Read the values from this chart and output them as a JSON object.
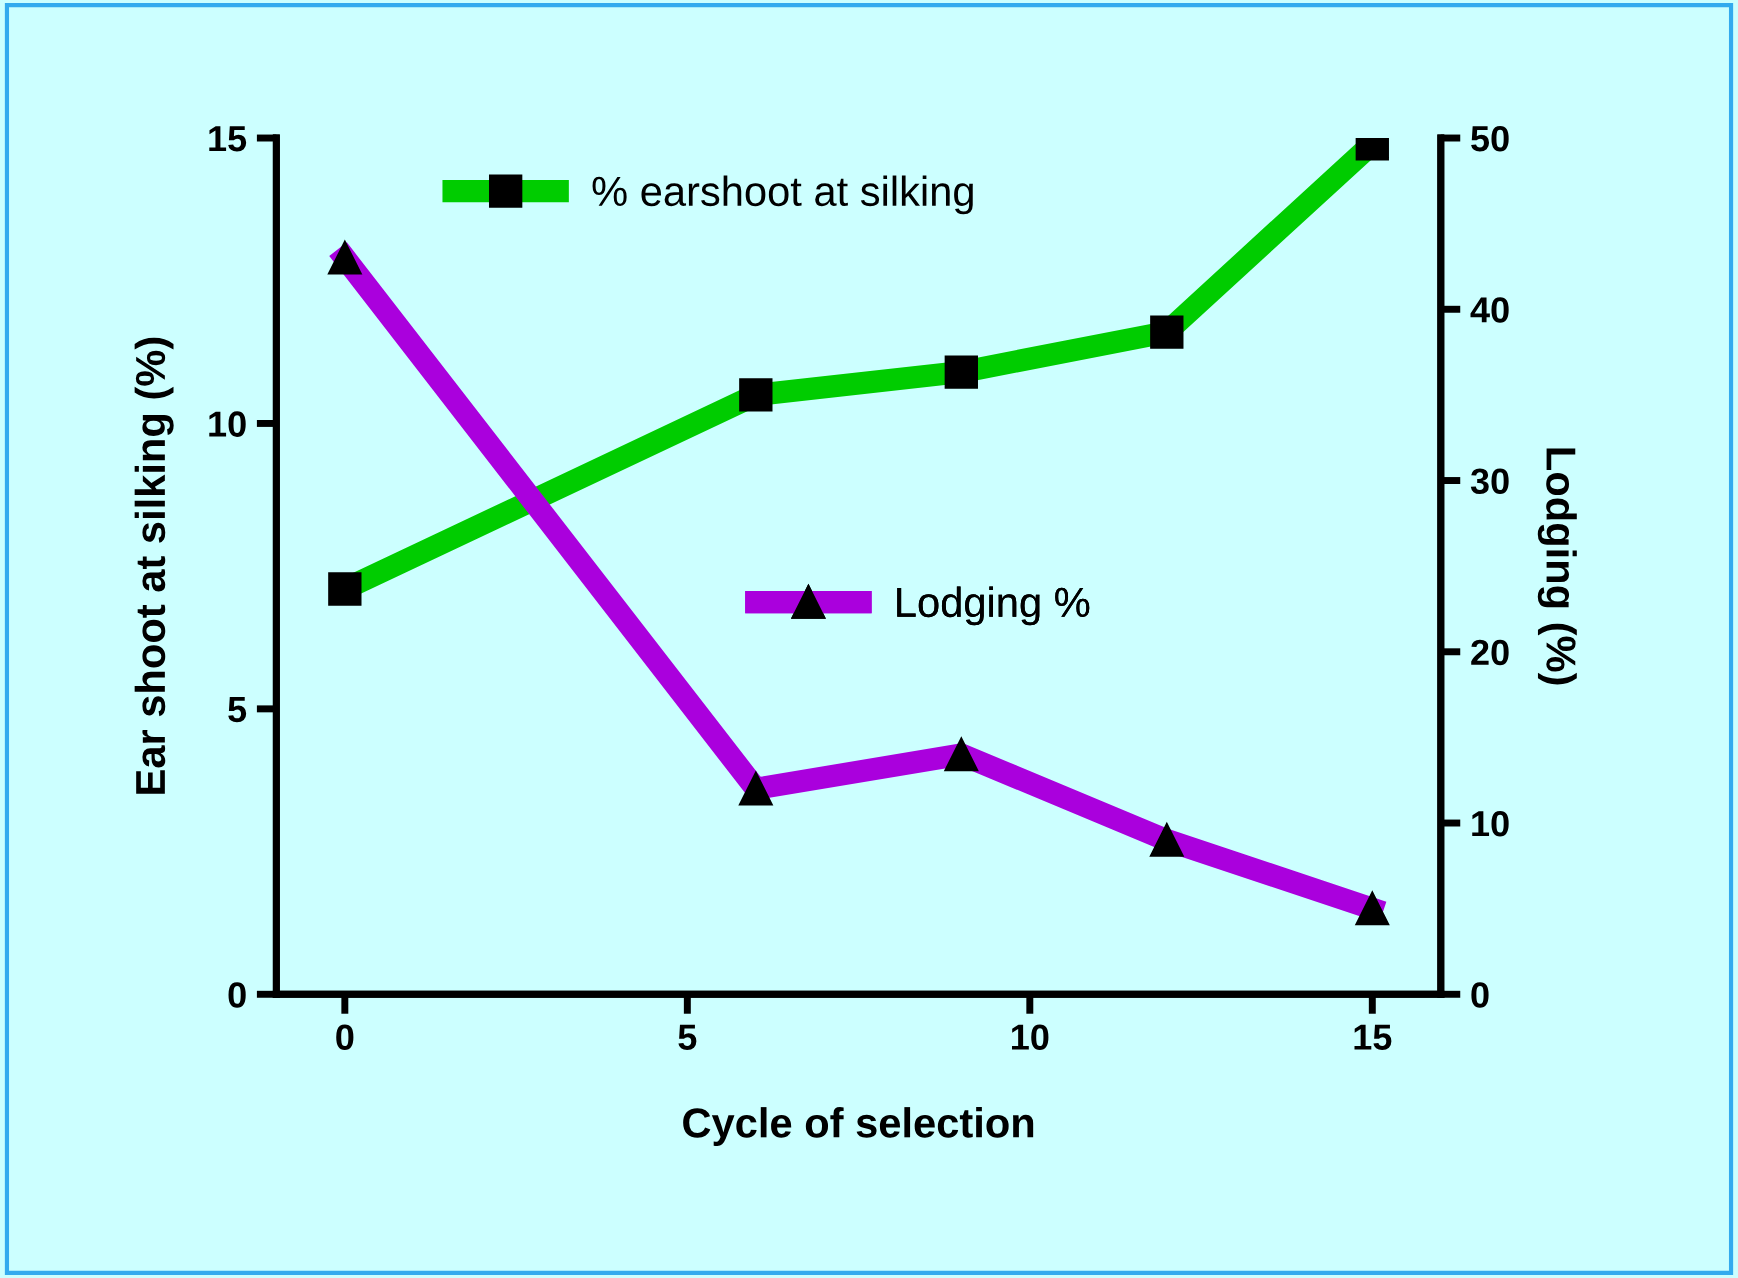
{
  "chart_data": {
    "type": "line",
    "xlabel": "Cycle of selection",
    "ylabel": "Ear shoot at silking (%)",
    "y2label": "Lodging (%)",
    "x": [
      0,
      6,
      9,
      12,
      15
    ],
    "series": [
      {
        "name": "% earshoot at silking",
        "color": "#00cc00",
        "values": [
          7.1,
          10.5,
          10.9,
          11.6,
          14.9
        ],
        "marker": "square"
      },
      {
        "name": "Lodging %",
        "color": "#aa00dd",
        "values": [
          43,
          12,
          14,
          9,
          5
        ],
        "axis": "y2",
        "marker": "triangle"
      }
    ],
    "xlim": [
      -1,
      16
    ],
    "xticks": [
      0,
      5,
      10,
      15
    ],
    "ylim": [
      0,
      15
    ],
    "yticks": [
      0,
      5,
      10,
      15
    ],
    "y2lim": [
      0,
      50
    ],
    "y2ticks": [
      0,
      10,
      20,
      30,
      40,
      50
    ],
    "grid": false,
    "legend": "top",
    "line_style": "solid"
  }
}
